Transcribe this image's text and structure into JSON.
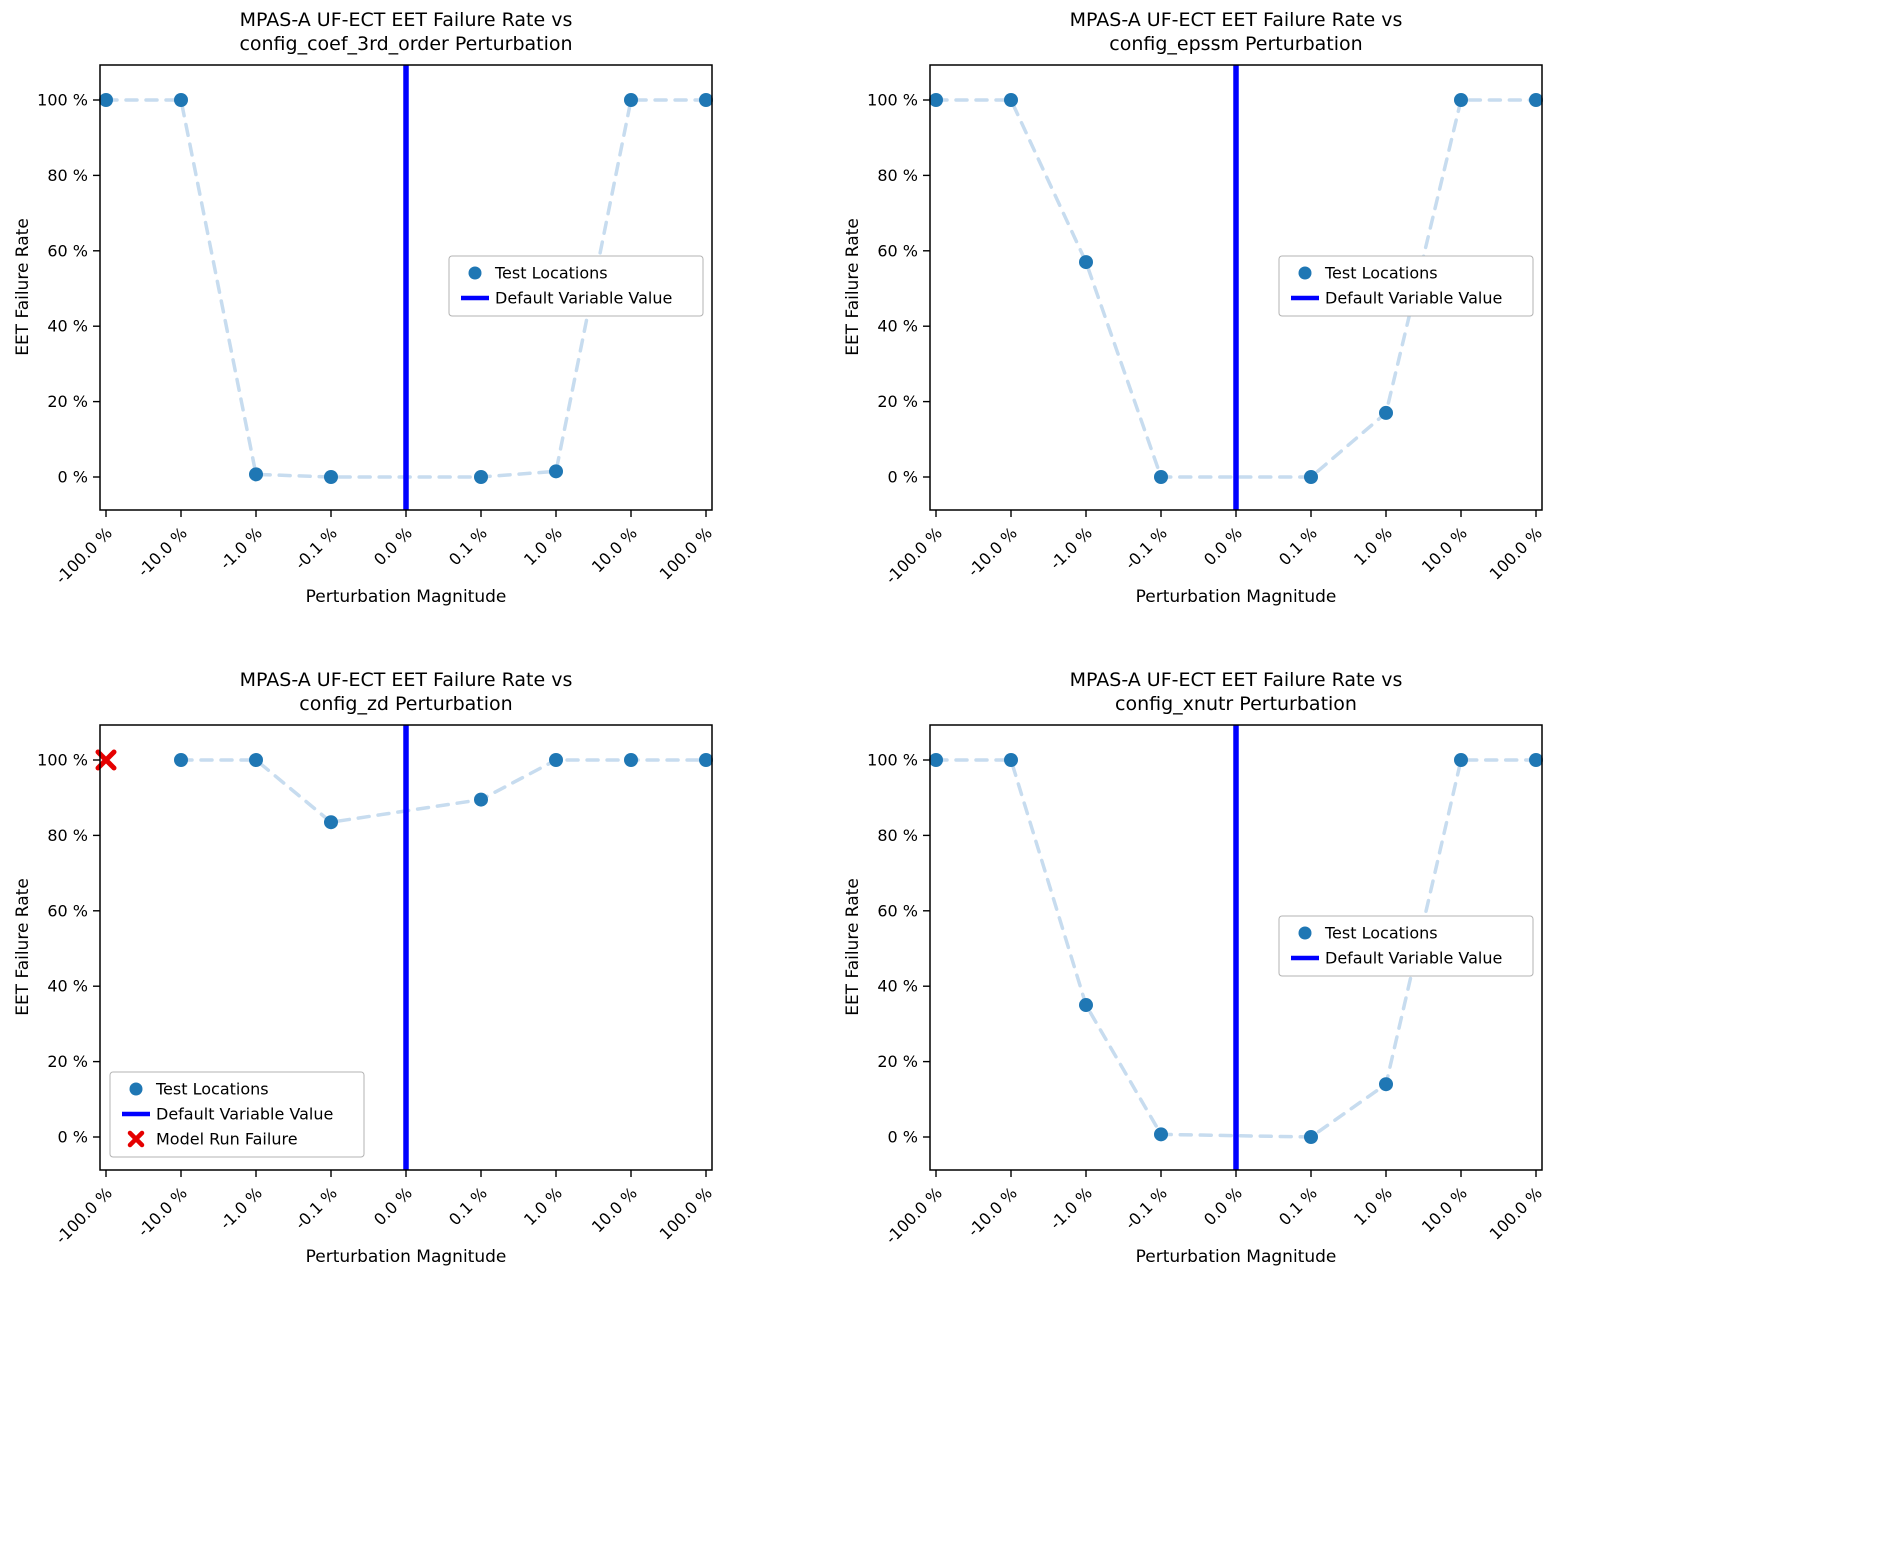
{
  "style": {
    "point_color": "#1f77b4",
    "trend_color": "#c7dcef",
    "default_line_color": "#0000ff",
    "failure_color": "#e50000",
    "axis_color": "#000000",
    "legend_border_color": "#b3b3b3",
    "background": "#ffffff"
  },
  "axes": {
    "ytick_values": [
      0,
      20,
      40,
      60,
      80,
      100
    ],
    "ytick_labels": [
      "0 %",
      "20 %",
      "40 %",
      "60 %",
      "80 %",
      "100 %"
    ],
    "ylim": [
      -9,
      109
    ],
    "categories": [
      "-100.0 %",
      "-10.0 %",
      "-1.0 %",
      "-0.1 %",
      "0.0 %",
      "0.1 %",
      "1.0 %",
      "10.0 %",
      "100.0 %"
    ]
  },
  "chart_data": [
    {
      "type": "line",
      "title_line1": "MPAS-A UF-ECT EET Failure Rate vs",
      "title_line2": "config_coef_3rd_order Perturbation",
      "xlabel": "Perturbation Magnitude",
      "ylabel": "EET Failure Rate",
      "categories": [
        "-100.0 %",
        "-10.0 %",
        "-1.0 %",
        "-0.1 %",
        "0.0 %",
        "0.1 %",
        "1.0 %",
        "10.0 %",
        "100.0 %"
      ],
      "values": [
        100,
        100,
        0.7,
        0,
        null,
        0,
        1.5,
        100,
        100
      ],
      "default_index": 4,
      "failures": [],
      "legend": {
        "position": "center-right",
        "items": [
          {
            "marker": "dot",
            "label": "Test Locations"
          },
          {
            "marker": "line",
            "label": "Default Variable Value"
          }
        ]
      }
    },
    {
      "type": "line",
      "title_line1": "MPAS-A UF-ECT EET Failure Rate vs",
      "title_line2": "config_epssm Perturbation",
      "xlabel": "Perturbation Magnitude",
      "ylabel": "EET Failure Rate",
      "categories": [
        "-100.0 %",
        "-10.0 %",
        "-1.0 %",
        "-0.1 %",
        "0.0 %",
        "0.1 %",
        "1.0 %",
        "10.0 %",
        "100.0 %"
      ],
      "values": [
        100,
        100,
        57,
        0,
        null,
        0,
        17,
        100,
        100
      ],
      "default_index": 4,
      "failures": [],
      "legend": {
        "position": "center-right",
        "items": [
          {
            "marker": "dot",
            "label": "Test Locations"
          },
          {
            "marker": "line",
            "label": "Default Variable Value"
          }
        ]
      }
    },
    {
      "type": "line",
      "title_line1": "MPAS-A UF-ECT EET Failure Rate vs",
      "title_line2": "config_zd Perturbation",
      "xlabel": "Perturbation Magnitude",
      "ylabel": "EET Failure Rate",
      "categories": [
        "-100.0 %",
        "-10.0 %",
        "-1.0 %",
        "-0.1 %",
        "0.0 %",
        "0.1 %",
        "1.0 %",
        "10.0 %",
        "100.0 %"
      ],
      "values": [
        null,
        100,
        100,
        83.5,
        null,
        89.5,
        100,
        100,
        100
      ],
      "default_index": 4,
      "failures": [
        {
          "index": 0,
          "value": 100
        }
      ],
      "legend": {
        "position": "lower-left",
        "items": [
          {
            "marker": "dot",
            "label": "Test Locations"
          },
          {
            "marker": "line",
            "label": "Default Variable Value"
          },
          {
            "marker": "x",
            "label": "Model Run Failure"
          }
        ]
      }
    },
    {
      "type": "line",
      "title_line1": "MPAS-A UF-ECT EET Failure Rate vs",
      "title_line2": "config_xnutr Perturbation",
      "xlabel": "Perturbation Magnitude",
      "ylabel": "EET Failure Rate",
      "categories": [
        "-100.0 %",
        "-10.0 %",
        "-1.0 %",
        "-0.1 %",
        "0.0 %",
        "0.1 %",
        "1.0 %",
        "10.0 %",
        "100.0 %"
      ],
      "values": [
        100,
        100,
        35,
        0.7,
        null,
        0,
        14,
        100,
        100
      ],
      "default_index": 4,
      "failures": [],
      "legend": {
        "position": "center-right",
        "items": [
          {
            "marker": "dot",
            "label": "Test Locations"
          },
          {
            "marker": "line",
            "label": "Default Variable Value"
          }
        ]
      }
    }
  ]
}
